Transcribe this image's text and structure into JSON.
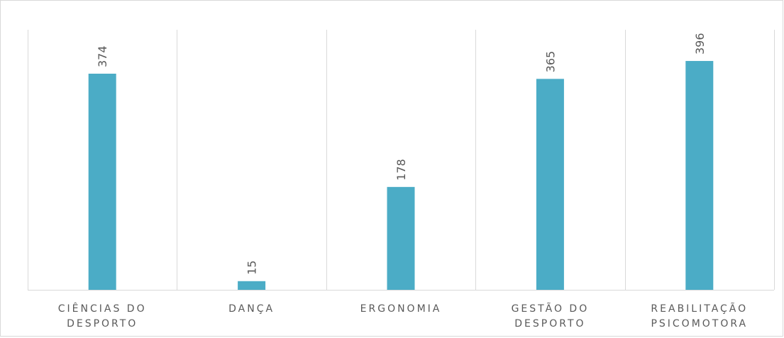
{
  "chart_data": {
    "type": "bar",
    "categories": [
      [
        "CIÊNCIAS DO",
        "DESPORTO"
      ],
      [
        "DANÇA"
      ],
      [
        "ERGONOMIA"
      ],
      [
        "GESTÃO DO",
        "DESPORTO"
      ],
      [
        "REABILITAÇÃO",
        "PSICOMOTORA"
      ]
    ],
    "values": [
      374,
      15,
      178,
      365,
      396
    ],
    "ylim": [
      0,
      450
    ],
    "grid": "vertical category separators",
    "bar_color": "#4BACC6",
    "data_labels": "rotated, above bars"
  }
}
